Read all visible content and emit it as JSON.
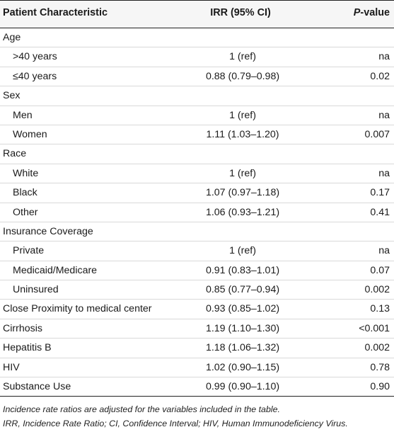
{
  "table": {
    "headers": {
      "characteristic": "Patient Characteristic",
      "irr": "IRR (95% CI)",
      "p_prefix": "P",
      "p_suffix": "-value"
    },
    "rows": [
      {
        "label": "Age",
        "irr": "",
        "p": "",
        "indent": false
      },
      {
        "label": ">40 years",
        "irr": "1 (ref)",
        "p": "na",
        "indent": true
      },
      {
        "label": "≤40 years",
        "irr": "0.88 (0.79–0.98)",
        "p": "0.02",
        "indent": true
      },
      {
        "label": "Sex",
        "irr": "",
        "p": "",
        "indent": false
      },
      {
        "label": "Men",
        "irr": "1 (ref)",
        "p": "na",
        "indent": true
      },
      {
        "label": "Women",
        "irr": "1.11 (1.03–1.20)",
        "p": "0.007",
        "indent": true
      },
      {
        "label": "Race",
        "irr": "",
        "p": "",
        "indent": false
      },
      {
        "label": "White",
        "irr": "1 (ref)",
        "p": "na",
        "indent": true
      },
      {
        "label": "Black",
        "irr": "1.07 (0.97–1.18)",
        "p": "0.17",
        "indent": true
      },
      {
        "label": "Other",
        "irr": "1.06 (0.93–1.21)",
        "p": "0.41",
        "indent": true
      },
      {
        "label": "Insurance Coverage",
        "irr": "",
        "p": "",
        "indent": false
      },
      {
        "label": "Private",
        "irr": "1 (ref)",
        "p": "na",
        "indent": true
      },
      {
        "label": "Medicaid/Medicare",
        "irr": "0.91 (0.83–1.01)",
        "p": "0.07",
        "indent": true
      },
      {
        "label": "Uninsured",
        "irr": "0.85 (0.77–0.94)",
        "p": "0.002",
        "indent": true
      },
      {
        "label": "Close Proximity to medical center",
        "irr": "0.93 (0.85–1.02)",
        "p": "0.13",
        "indent": false
      },
      {
        "label": "Cirrhosis",
        "irr": "1.19 (1.10–1.30)",
        "p": "<0.001",
        "indent": false
      },
      {
        "label": "Hepatitis B",
        "irr": "1.18 (1.06–1.32)",
        "p": "0.002",
        "indent": false
      },
      {
        "label": "HIV",
        "irr": "1.02 (0.90–1.15)",
        "p": "0.78",
        "indent": false
      },
      {
        "label": "Substance Use",
        "irr": "0.99 (0.90–1.10)",
        "p": "0.90",
        "indent": false
      }
    ]
  },
  "footnotes": {
    "line1": "Incidence rate ratios are adjusted for the variables included in the table.",
    "line2": "IRR, Incidence Rate Ratio; CI, Confidence Interval; HIV, Human Immunodeficiency Virus."
  }
}
